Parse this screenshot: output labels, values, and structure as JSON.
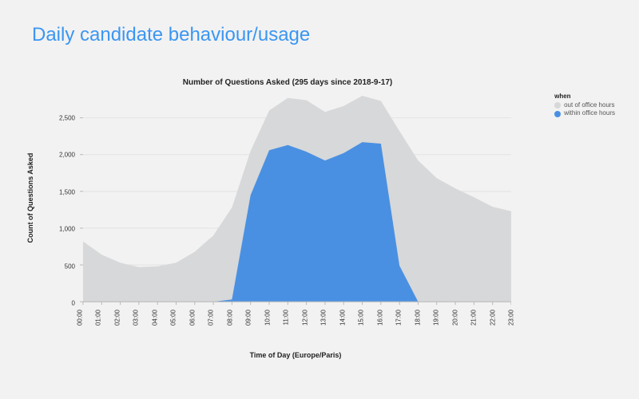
{
  "page": {
    "heading": "Daily candidate behaviour/usage",
    "heading_color": "#3b96f2",
    "background_color": "#f2f2f2"
  },
  "chart": {
    "type": "area",
    "title": "Number of Questions Asked  (295 days since 2018-9-17)",
    "title_fontsize": 10,
    "xlabel": "Time of Day (Europe/Paris)",
    "ylabel": "Count of Questions Asked",
    "label_fontsize": 9,
    "tick_fontsize": 8,
    "x_categories": [
      "00:00",
      "01:00",
      "02:00",
      "03:00",
      "04:00",
      "05:00",
      "06:00",
      "07:00",
      "08:00",
      "09:00",
      "10:00",
      "11:00",
      "12:00",
      "13:00",
      "14:00",
      "15:00",
      "16:00",
      "17:00",
      "18:00",
      "19:00",
      "20:00",
      "21:00",
      "22:00",
      "23:00"
    ],
    "y_ticks": [
      0,
      500,
      1000,
      1500,
      2000,
      2500
    ],
    "y_tick_labels": [
      "0",
      "500",
      "1,000",
      "1,500",
      "2,000",
      "2,500"
    ],
    "ylim": [
      0,
      2800
    ],
    "xlim": [
      0,
      23
    ],
    "grid_color": "#e3e3e3",
    "axis_color": "#b8b8b8",
    "background_color": "#f2f2f2",
    "x_tick_rotation": -90,
    "series": [
      {
        "name": "out of office hours",
        "color": "#d7d8d9",
        "values": [
          820,
          640,
          530,
          470,
          480,
          530,
          680,
          900,
          1280,
          2050,
          2600,
          2770,
          2740,
          2580,
          2660,
          2800,
          2730,
          2320,
          1920,
          1680,
          1540,
          1420,
          1290,
          1230
        ]
      },
      {
        "name": "within office hours",
        "color": "#4a90e2",
        "values": [
          0,
          0,
          0,
          0,
          0,
          0,
          0,
          0,
          30,
          1450,
          2060,
          2130,
          2040,
          1920,
          2020,
          2170,
          2150,
          490,
          0,
          0,
          0,
          0,
          0,
          0
        ]
      }
    ],
    "legend": {
      "title": "when",
      "position": "right",
      "items": [
        {
          "label": "out of office hours",
          "color": "#d7d8d9"
        },
        {
          "label": "within office hours",
          "color": "#4a90e2"
        }
      ]
    }
  }
}
